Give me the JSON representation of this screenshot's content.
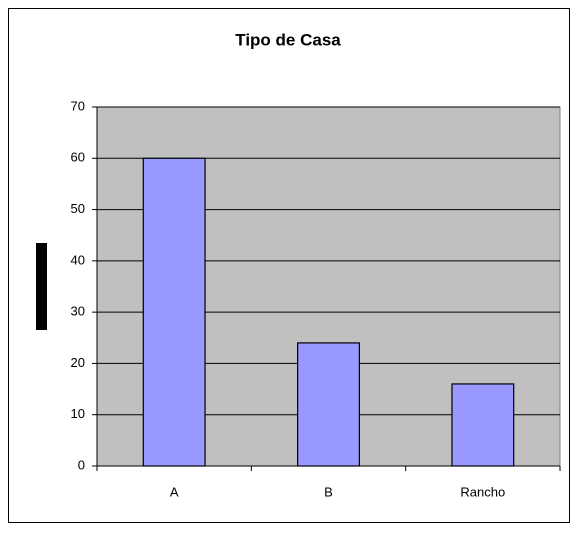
{
  "chart_data": {
    "type": "bar",
    "title": "Tipo de Casa",
    "categories": [
      "A",
      "B",
      "Rancho"
    ],
    "values": [
      60,
      24,
      16
    ],
    "color": "#9999ff",
    "ylim": [
      0,
      70
    ],
    "yticks": [
      0,
      10,
      20,
      30,
      40,
      50,
      60,
      70
    ],
    "grid": true
  }
}
